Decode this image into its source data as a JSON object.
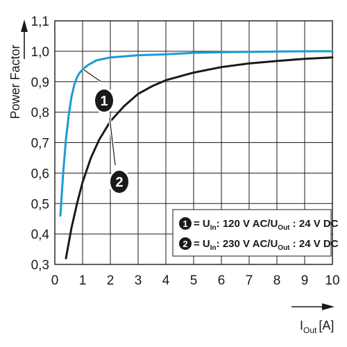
{
  "chart_data": {
    "type": "line",
    "xlabel_main": "I",
    "xlabel_sub": "Out",
    "xlabel_unit": "[A]",
    "ylabel": "Power Factor",
    "xlim": [
      0,
      10
    ],
    "ylim": [
      0.3,
      1.1
    ],
    "x_ticks": [
      "0",
      "1",
      "2",
      "3",
      "4",
      "5",
      "6",
      "7",
      "8",
      "9",
      "10"
    ],
    "y_ticks": [
      "0,3",
      "0,4",
      "0,5",
      "0,6",
      "0,7",
      "0,8",
      "0,9",
      "1,0",
      "1,1"
    ],
    "grid": true,
    "legend_position": "bottom-right",
    "series": [
      {
        "marker_label": "1",
        "legend": {
          "pre": "= U",
          "sub1": "In",
          "mid": ": 120 V AC/U",
          "sub2": "Out",
          "post": " : 24 V DC"
        },
        "color": "#1a9bd0",
        "x": [
          0.2,
          0.3,
          0.4,
          0.5,
          0.6,
          0.7,
          0.8,
          0.9,
          1.0,
          1.2,
          1.5,
          2.0,
          2.5,
          3.0,
          4.0,
          5.0,
          6.0,
          7.0,
          8.0,
          9.0,
          10.0
        ],
        "y": [
          0.46,
          0.6,
          0.71,
          0.79,
          0.85,
          0.89,
          0.915,
          0.93,
          0.94,
          0.955,
          0.97,
          0.98,
          0.983,
          0.987,
          0.99,
          0.995,
          0.997,
          0.998,
          0.999,
          1.0,
          1.0
        ]
      },
      {
        "marker_label": "2",
        "legend": {
          "pre": "= U",
          "sub1": "In",
          "mid": ": 230 V AC/U",
          "sub2": "Out",
          "post": " : 24 V DC"
        },
        "color": "#1a1a1a",
        "x": [
          0.4,
          0.6,
          0.8,
          1.0,
          1.3,
          1.6,
          2.0,
          2.5,
          3.0,
          3.5,
          4.0,
          5.0,
          6.0,
          7.0,
          8.0,
          9.0,
          10.0
        ],
        "y": [
          0.32,
          0.42,
          0.5,
          0.57,
          0.65,
          0.71,
          0.77,
          0.82,
          0.86,
          0.885,
          0.905,
          0.93,
          0.948,
          0.96,
          0.968,
          0.975,
          0.98
        ]
      }
    ]
  }
}
